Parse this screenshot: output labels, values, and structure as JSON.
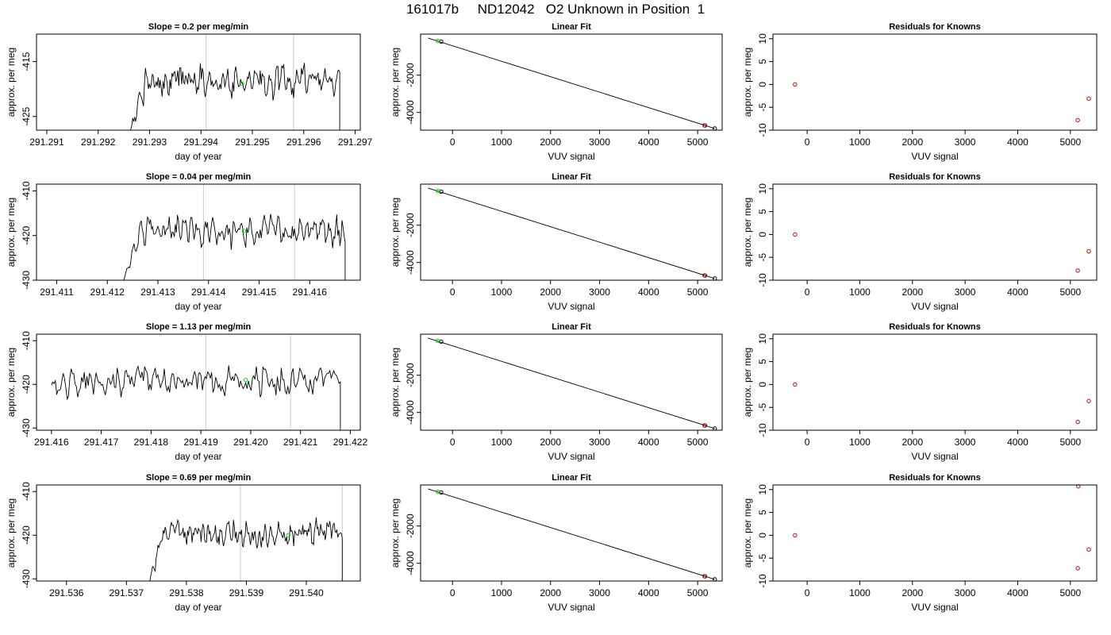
{
  "page_title": "161017b     ND12042   O2 Unknown in Position  1",
  "chart_data": [
    {
      "panel": "timeseries",
      "row": 0,
      "type": "line",
      "title": "Slope =  0.2  per meg/min",
      "xlabel": "day of year",
      "ylabel": "approx. per meg",
      "xlim": [
        291.2908,
        291.2971
      ],
      "ylim": [
        -427.5,
        -410
      ],
      "xticks": [
        291.291,
        291.292,
        291.293,
        291.294,
        291.295,
        291.296,
        291.297
      ],
      "xticklabels": [
        "291.291",
        "291.292",
        "291.293",
        "291.294",
        "291.295",
        "291.296",
        "291.297"
      ],
      "yticks": [
        -415,
        -425
      ],
      "yticklabels": [
        "-415",
        "-425"
      ],
      "vlines": [
        291.2941,
        291.2958
      ],
      "start": 291.2925,
      "end": 291.2967,
      "mean": -418.5,
      "amp": 1.6,
      "green_point": {
        "x": 291.2948,
        "y": -419
      }
    },
    {
      "panel": "linear_fit",
      "row": 0,
      "type": "scatter",
      "title": "Linear Fit",
      "xlabel": "VUV signal",
      "ylabel": "approx. per meg",
      "xlim": [
        -650,
        5500
      ],
      "ylim": [
        -4950,
        200
      ],
      "xticks": [
        0,
        1000,
        2000,
        3000,
        4000,
        5000
      ],
      "xticklabels": [
        "0",
        "1000",
        "2000",
        "3000",
        "4000",
        "5000"
      ],
      "yticks": [
        -2000,
        -4000
      ],
      "yticklabels": [
        "-2000",
        "-4000"
      ],
      "fit_line": {
        "x": [
          -500,
          5350
        ],
        "y": [
          -10,
          -4860
        ]
      },
      "points": [
        {
          "x": -230,
          "y": -200,
          "color": "#000000"
        },
        {
          "x": -300,
          "y": -160,
          "color": "#00dd00"
        },
        {
          "x": 5150,
          "y": -4700,
          "color": "#000000"
        },
        {
          "x": 5140,
          "y": -4690,
          "color": "#cc0000"
        },
        {
          "x": 5350,
          "y": -4860,
          "color": "#000000"
        }
      ]
    },
    {
      "panel": "residuals",
      "row": 0,
      "type": "scatter",
      "title": "Residuals for Knowns",
      "xlabel": "VUV signal",
      "ylabel": "approx. per meg",
      "xlim": [
        -650,
        5500
      ],
      "ylim": [
        -10,
        11
      ],
      "xticks": [
        0,
        1000,
        2000,
        3000,
        4000,
        5000
      ],
      "xticklabels": [
        "0",
        "1000",
        "2000",
        "3000",
        "4000",
        "5000"
      ],
      "yticks": [
        -10,
        -5,
        0,
        5,
        10
      ],
      "yticklabels": [
        "-10",
        "-5",
        "0",
        "5",
        "10"
      ],
      "points": [
        {
          "x": -230,
          "y": 0
        },
        {
          "x": 5140,
          "y": -7.8
        },
        {
          "x": 5350,
          "y": -3.1
        }
      ]
    },
    {
      "panel": "timeseries",
      "row": 1,
      "type": "line",
      "title": "Slope =  0.04  per meg/min",
      "xlabel": "day of year",
      "ylabel": "approx. per meg",
      "xlim": [
        291.4106,
        291.417
      ],
      "ylim": [
        -430,
        -408.5
      ],
      "xticks": [
        291.411,
        291.412,
        291.413,
        291.414,
        291.415,
        291.416
      ],
      "xticklabels": [
        "291.411",
        "291.412",
        "291.413",
        "291.414",
        "291.415",
        "291.416"
      ],
      "yticks": [
        -410,
        -420,
        -430
      ],
      "yticklabels": [
        "-410",
        "-420",
        "-430"
      ],
      "vlines": [
        291.4139,
        291.4157
      ],
      "start": 291.4122,
      "end": 291.4167,
      "mean": -419,
      "amp": 1.8,
      "green_point": {
        "x": 291.4147,
        "y": -419
      }
    },
    {
      "panel": "linear_fit",
      "row": 1,
      "type": "scatter",
      "title": "Linear Fit",
      "xlabel": "VUV signal",
      "ylabel": "approx. per meg",
      "xlim": [
        -650,
        5500
      ],
      "ylim": [
        -4950,
        200
      ],
      "xticks": [
        0,
        1000,
        2000,
        3000,
        4000,
        5000
      ],
      "xticklabels": [
        "0",
        "1000",
        "2000",
        "3000",
        "4000",
        "5000"
      ],
      "yticks": [
        -2000,
        -4000
      ],
      "yticklabels": [
        "-2000",
        "-4000"
      ],
      "fit_line": {
        "x": [
          -500,
          5350
        ],
        "y": [
          -10,
          -4860
        ]
      },
      "points": [
        {
          "x": -230,
          "y": -200,
          "color": "#000000"
        },
        {
          "x": -300,
          "y": -160,
          "color": "#00dd00"
        },
        {
          "x": 5150,
          "y": -4700,
          "color": "#000000"
        },
        {
          "x": 5140,
          "y": -4690,
          "color": "#cc0000"
        },
        {
          "x": 5350,
          "y": -4860,
          "color": "#000000"
        }
      ]
    },
    {
      "panel": "residuals",
      "row": 1,
      "type": "scatter",
      "title": "Residuals for Knowns",
      "xlabel": "VUV signal",
      "ylabel": "approx. per meg",
      "xlim": [
        -650,
        5500
      ],
      "ylim": [
        -10,
        11
      ],
      "xticks": [
        0,
        1000,
        2000,
        3000,
        4000,
        5000
      ],
      "xticklabels": [
        "0",
        "1000",
        "2000",
        "3000",
        "4000",
        "5000"
      ],
      "yticks": [
        -10,
        -5,
        0,
        5,
        10
      ],
      "yticklabels": [
        "-10",
        "-5",
        "0",
        "5",
        "10"
      ],
      "points": [
        {
          "x": -230,
          "y": 0
        },
        {
          "x": 5140,
          "y": -7.9
        },
        {
          "x": 5350,
          "y": -3.7
        }
      ]
    },
    {
      "panel": "timeseries",
      "row": 2,
      "type": "line",
      "title": "Slope =  1.13  per meg/min",
      "xlabel": "day of year",
      "ylabel": "approx. per meg",
      "xlim": [
        291.4157,
        291.4222
      ],
      "ylim": [
        -430.5,
        -408.5
      ],
      "xticks": [
        291.416,
        291.417,
        291.418,
        291.419,
        291.42,
        291.421,
        291.422
      ],
      "xticklabels": [
        "291.416",
        "291.417",
        "291.418",
        "291.419",
        "291.420",
        "291.421",
        "291.422"
      ],
      "yticks": [
        -410,
        -420,
        -430
      ],
      "yticklabels": [
        "-410",
        "-420",
        "-430"
      ],
      "vlines": [
        291.4191,
        291.4208
      ],
      "start": 291.416,
      "end": 291.4218,
      "mean": -419,
      "amp": 1.9,
      "green_point": {
        "x": 291.4199,
        "y": -419
      }
    },
    {
      "panel": "linear_fit",
      "row": 2,
      "type": "scatter",
      "title": "Linear Fit",
      "xlabel": "VUV signal",
      "ylabel": "approx. per meg",
      "xlim": [
        -650,
        5500
      ],
      "ylim": [
        -4950,
        200
      ],
      "xticks": [
        0,
        1000,
        2000,
        3000,
        4000,
        5000
      ],
      "xticklabels": [
        "0",
        "1000",
        "2000",
        "3000",
        "4000",
        "5000"
      ],
      "yticks": [
        -2000,
        -4000
      ],
      "yticklabels": [
        "-2000",
        "-4000"
      ],
      "fit_line": {
        "x": [
          -500,
          5350
        ],
        "y": [
          -10,
          -4860
        ]
      },
      "points": [
        {
          "x": -230,
          "y": -200,
          "color": "#000000"
        },
        {
          "x": -300,
          "y": -160,
          "color": "#00dd00"
        },
        {
          "x": 5150,
          "y": -4700,
          "color": "#000000"
        },
        {
          "x": 5140,
          "y": -4690,
          "color": "#cc0000"
        },
        {
          "x": 5350,
          "y": -4860,
          "color": "#000000"
        }
      ]
    },
    {
      "panel": "residuals",
      "row": 2,
      "type": "scatter",
      "title": "Residuals for Knowns",
      "xlabel": "VUV signal",
      "ylabel": "approx. per meg",
      "xlim": [
        -650,
        5500
      ],
      "ylim": [
        -10,
        11
      ],
      "xticks": [
        0,
        1000,
        2000,
        3000,
        4000,
        5000
      ],
      "xticklabels": [
        "0",
        "1000",
        "2000",
        "3000",
        "4000",
        "5000"
      ],
      "yticks": [
        -10,
        -5,
        0,
        5,
        10
      ],
      "yticklabels": [
        "-10",
        "-5",
        "0",
        "5",
        "10"
      ],
      "points": [
        {
          "x": -230,
          "y": 0
        },
        {
          "x": 5140,
          "y": -8.2
        },
        {
          "x": 5350,
          "y": -3.6
        }
      ]
    },
    {
      "panel": "timeseries",
      "row": 3,
      "type": "line",
      "title": "Slope =  0.69  per meg/min",
      "xlabel": "day of year",
      "ylabel": "approx. per meg",
      "xlim": [
        291.5355,
        291.5409
      ],
      "ylim": [
        -430.5,
        -408.5
      ],
      "xticks": [
        291.536,
        291.537,
        291.538,
        291.539,
        291.54
      ],
      "xticklabels": [
        "291.536",
        "291.537",
        "291.538",
        "291.539",
        "291.540"
      ],
      "yticks": [
        -410,
        -420,
        -430
      ],
      "yticklabels": [
        "-410",
        "-420",
        "-430"
      ],
      "vlines": [
        291.5389,
        291.5406
      ],
      "start": 291.5373,
      "end": 291.5406,
      "mean": -419.5,
      "amp": 1.6,
      "green_point": {
        "x": 291.5397,
        "y": -420
      }
    },
    {
      "panel": "linear_fit",
      "row": 3,
      "type": "scatter",
      "title": "Linear Fit",
      "xlabel": "VUV signal",
      "ylabel": "approx. per meg",
      "xlim": [
        -650,
        5500
      ],
      "ylim": [
        -4950,
        200
      ],
      "xticks": [
        0,
        1000,
        2000,
        3000,
        4000,
        5000
      ],
      "xticklabels": [
        "0",
        "1000",
        "2000",
        "3000",
        "4000",
        "5000"
      ],
      "yticks": [
        -2000,
        -4000
      ],
      "yticklabels": [
        "-2000",
        "-4000"
      ],
      "fit_line": {
        "x": [
          -500,
          5350
        ],
        "y": [
          -10,
          -4860
        ]
      },
      "points": [
        {
          "x": -230,
          "y": -200,
          "color": "#000000"
        },
        {
          "x": -300,
          "y": -160,
          "color": "#00dd00"
        },
        {
          "x": 5150,
          "y": -4700,
          "color": "#000000"
        },
        {
          "x": 5140,
          "y": -4690,
          "color": "#cc0000"
        },
        {
          "x": 5350,
          "y": -4860,
          "color": "#000000"
        }
      ]
    },
    {
      "panel": "residuals",
      "row": 3,
      "type": "scatter",
      "title": "Residuals for Knowns",
      "xlabel": "VUV signal",
      "ylabel": "approx. per meg",
      "xlim": [
        -650,
        5500
      ],
      "ylim": [
        -10,
        11
      ],
      "xticks": [
        0,
        1000,
        2000,
        3000,
        4000,
        5000
      ],
      "xticklabels": [
        "0",
        "1000",
        "2000",
        "3000",
        "4000",
        "5000"
      ],
      "yticks": [
        -10,
        -5,
        0,
        5,
        10
      ],
      "yticklabels": [
        "-10",
        "-5",
        "0",
        "5",
        "10"
      ],
      "points": [
        {
          "x": -230,
          "y": 0
        },
        {
          "x": 5140,
          "y": -7.2
        },
        {
          "x": 5350,
          "y": -3.1
        },
        {
          "x": 5150,
          "y": 10.7
        }
      ]
    }
  ]
}
